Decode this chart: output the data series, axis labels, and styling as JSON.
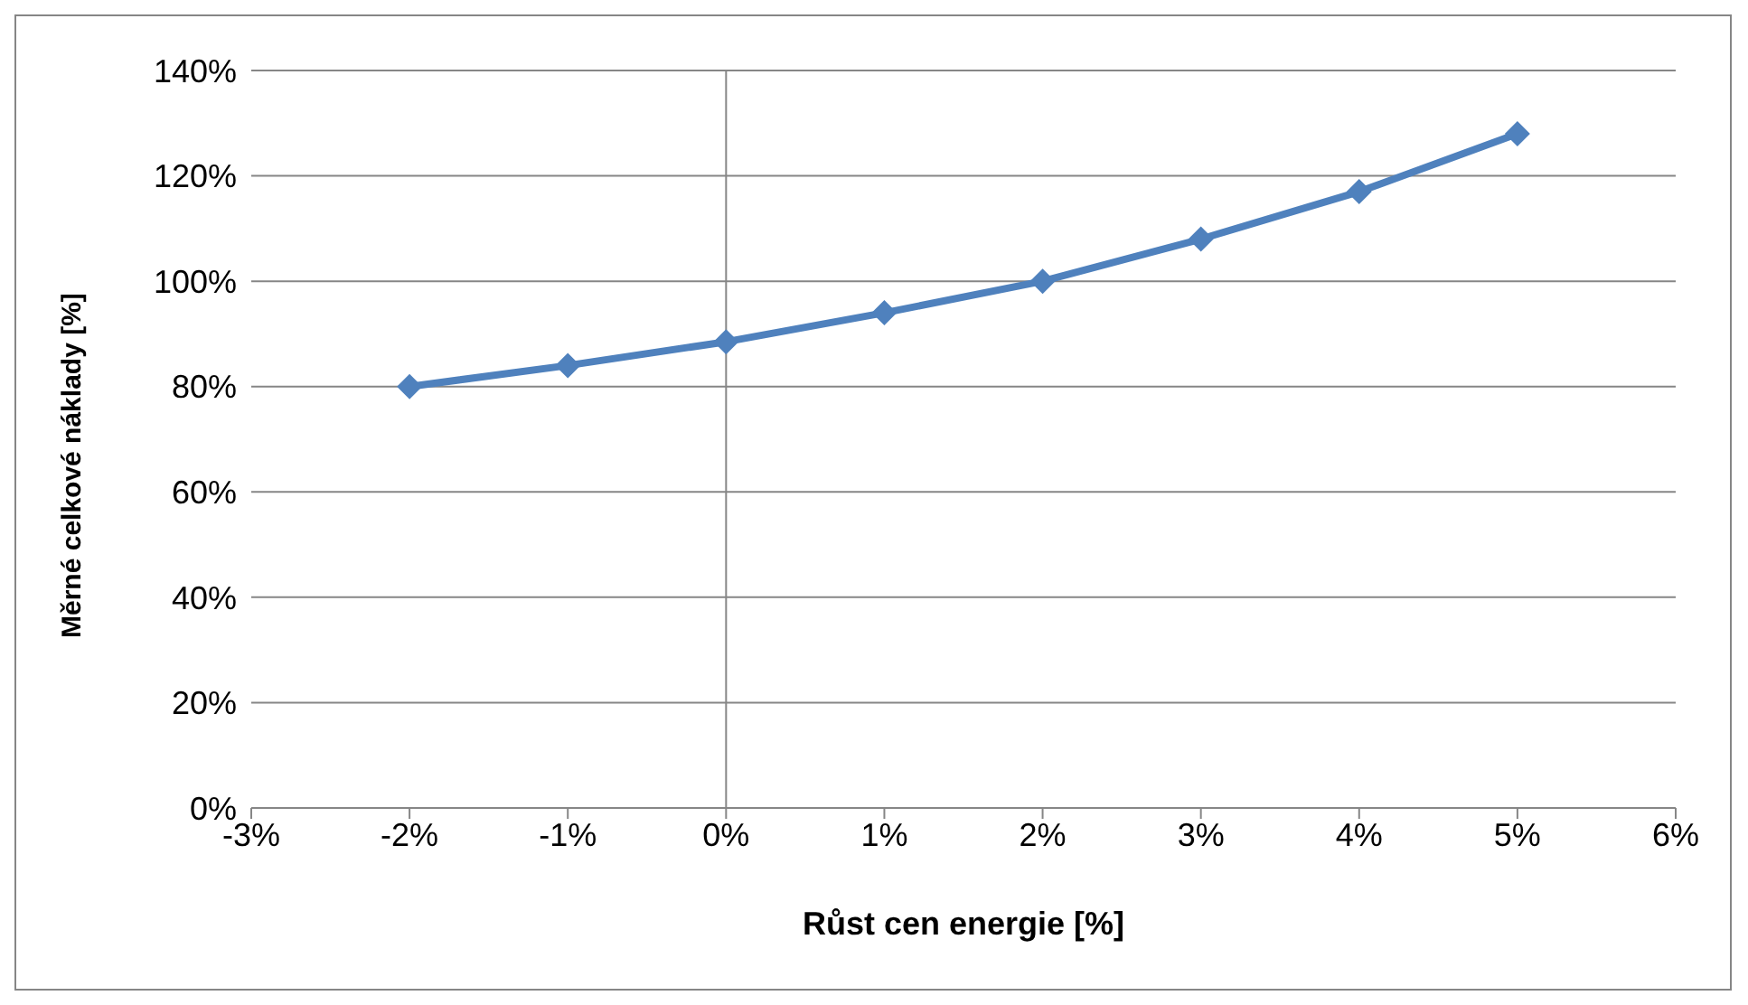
{
  "chart_data": {
    "type": "line",
    "xlabel": "Růst cen energie [%]",
    "ylabel": "Měrné celkové náklady [%]",
    "x": [
      -2,
      -1,
      0,
      1,
      2,
      3,
      4,
      5
    ],
    "series": [
      {
        "color": "#4f81bd",
        "values": [
          80,
          84,
          88.5,
          94,
          100,
          108,
          117,
          128
        ]
      }
    ],
    "xlim": [
      -3,
      6
    ],
    "xticks": [
      {
        "value": -3,
        "label": "-3%"
      },
      {
        "value": -2,
        "label": "-2%"
      },
      {
        "value": -1,
        "label": "-1%"
      },
      {
        "value": 0,
        "label": "0%"
      },
      {
        "value": 1,
        "label": "1%"
      },
      {
        "value": 2,
        "label": "2%"
      },
      {
        "value": 3,
        "label": "3%"
      },
      {
        "value": 4,
        "label": "4%"
      },
      {
        "value": 5,
        "label": "5%"
      },
      {
        "value": 6,
        "label": "6%"
      }
    ],
    "ylim": [
      0,
      140
    ],
    "yticks": [
      {
        "value": 0,
        "label": "0%"
      },
      {
        "value": 20,
        "label": "20%"
      },
      {
        "value": 40,
        "label": "40%"
      },
      {
        "value": 60,
        "label": "60%"
      },
      {
        "value": 80,
        "label": "80%"
      },
      {
        "value": 100,
        "label": "100%"
      },
      {
        "value": 120,
        "label": "120%"
      },
      {
        "value": 140,
        "label": "140%"
      }
    ],
    "ref_lines": [
      {
        "axis": "x",
        "value": 0,
        "color": "#868686"
      }
    ],
    "grid": "y",
    "marker": "diamond",
    "line_style": "solid",
    "legend": false
  }
}
